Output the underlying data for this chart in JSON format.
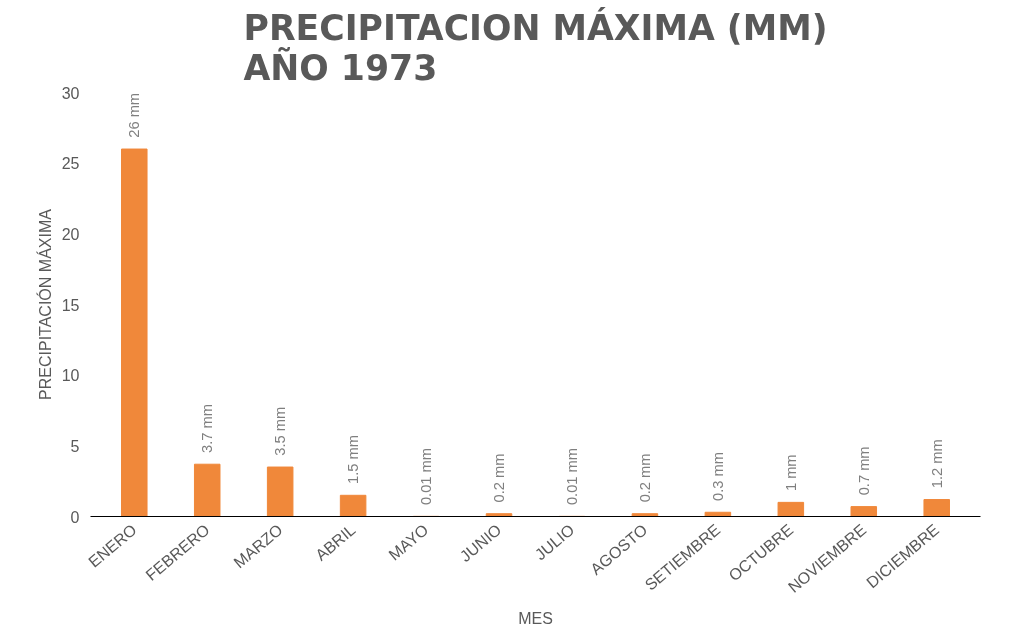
{
  "chart_data": {
    "type": "bar",
    "title": "PRECIPITACION MÁXIMA (MM)\nAÑO 1973",
    "xlabel": "MES",
    "ylabel": "PRECIPITACIÓN MÁXIMA",
    "categories": [
      "ENERO",
      "FEBRERO",
      "MARZO",
      "ABRIL",
      "MAYO",
      "JUNIO",
      "JULIO",
      "AGOSTO",
      "SETIEMBRE",
      "OCTUBRE",
      "NOVIEMBRE",
      "DICIEMBRE"
    ],
    "values": [
      26,
      3.7,
      3.5,
      1.5,
      0.01,
      0.2,
      0.01,
      0.2,
      0.3,
      1,
      0.7,
      1.2
    ],
    "value_labels": [
      "26 mm",
      "3.7 mm",
      "3.5 mm",
      "1.5 mm",
      "0.01 mm",
      "0.2 mm",
      "0.01 mm",
      "0.2 mm",
      "0.3 mm",
      "1 mm",
      "0.7 mm",
      "1.2 mm"
    ],
    "color": "#f0883a",
    "ylim": [
      0,
      30
    ],
    "yticks": [
      0,
      5,
      10,
      15,
      20,
      25,
      30
    ],
    "grid": false
  }
}
